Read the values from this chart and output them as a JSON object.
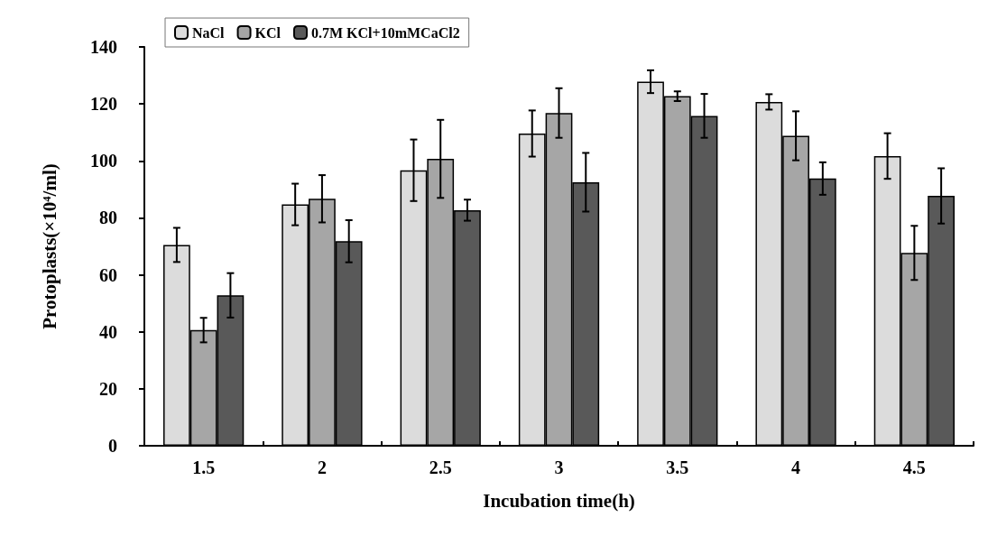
{
  "chart_data": {
    "type": "bar",
    "xlabel": "Incubation time(h)",
    "ylabel": "Protoplasts(×10⁴/ml)",
    "categories": [
      "1.5",
      "2",
      "2.5",
      "3",
      "3.5",
      "4",
      "4.5"
    ],
    "series": [
      {
        "name": "NaCl",
        "color": "#dcdcdc",
        "values": [
          70.5,
          84.7,
          96.7,
          109.6,
          127.8,
          120.7,
          101.7
        ],
        "errors": [
          6,
          7.3,
          10.8,
          8.1,
          4,
          2.7,
          8
        ]
      },
      {
        "name": "KCl",
        "color": "#a6a6a6",
        "values": [
          40.6,
          86.7,
          100.7,
          116.8,
          122.7,
          108.8,
          67.7
        ],
        "errors": [
          4.3,
          8.3,
          13.7,
          8.7,
          1.7,
          8.6,
          9.5
        ]
      },
      {
        "name": "0.7M KCl+10mMCaCl2",
        "color": "#595959",
        "values": [
          52.8,
          71.8,
          82.7,
          92.5,
          115.8,
          93.8,
          87.7
        ],
        "errors": [
          7.8,
          7.4,
          3.7,
          10.3,
          7.7,
          5.7,
          9.7
        ]
      }
    ],
    "ylim": [
      0,
      140
    ],
    "yticks": [
      0,
      20,
      40,
      60,
      80,
      100,
      120,
      140
    ],
    "grid": false,
    "legend": "top left"
  }
}
